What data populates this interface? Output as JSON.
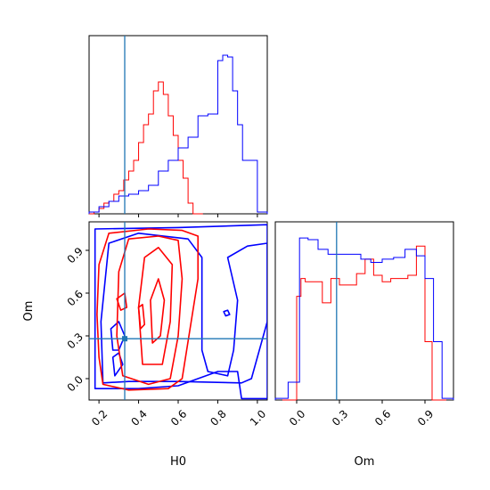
{
  "chart_data": {
    "type": "corner",
    "parameters": [
      "H0",
      "Om"
    ],
    "colors": {
      "run_a": "#ff0000",
      "run_b": "#0000ff",
      "truth": "#1f77b4"
    },
    "truth": {
      "H0": 0.33,
      "Om": 0.28
    },
    "panels": [
      {
        "id": "hist-H0",
        "type": "histogram",
        "xlim": [
          0.15,
          1.05
        ],
        "xticks": [
          0.2,
          0.4,
          0.6,
          0.8,
          1.0
        ],
        "run_a": {
          "bin_edges": [
            0.15,
            0.175,
            0.2,
            0.225,
            0.25,
            0.275,
            0.3,
            0.325,
            0.35,
            0.375,
            0.4,
            0.425,
            0.45,
            0.475,
            0.5,
            0.525,
            0.55,
            0.575,
            0.6,
            0.625,
            0.65,
            0.675,
            0.7,
            0.725
          ],
          "counts": [
            0,
            0.01,
            0.03,
            0.06,
            0.07,
            0.11,
            0.13,
            0.19,
            0.24,
            0.3,
            0.4,
            0.5,
            0.56,
            0.69,
            0.74,
            0.67,
            0.55,
            0.44,
            0.3,
            0.2,
            0.06,
            0,
            0
          ]
        },
        "run_b": {
          "bin_edges": [
            0.15,
            0.2,
            0.25,
            0.3,
            0.35,
            0.4,
            0.45,
            0.5,
            0.55,
            0.6,
            0.65,
            0.7,
            0.75,
            0.8,
            0.825,
            0.85,
            0.875,
            0.9,
            0.925,
            0.95,
            1.0,
            1.05
          ],
          "counts": [
            0.01,
            0.04,
            0.07,
            0.1,
            0.11,
            0.13,
            0.16,
            0.24,
            0.3,
            0.37,
            0.43,
            0.55,
            0.56,
            0.86,
            0.89,
            0.88,
            0.69,
            0.5,
            0.3,
            0.3,
            0.01
          ]
        },
        "ylim": [
          0,
          1
        ]
      },
      {
        "id": "contour-H0-Om",
        "type": "contour",
        "xlim": [
          0.15,
          1.05
        ],
        "ylim": [
          -0.15,
          1.1
        ],
        "xticks": [
          0.2,
          0.4,
          0.6,
          0.8,
          1.0
        ],
        "yticks": [
          0.0,
          0.3,
          0.6,
          0.9
        ],
        "xlabel": "H0",
        "ylabel": "Om",
        "run_a_contours": [
          [
            [
              0.22,
              -0.04
            ],
            [
              0.2,
              0.15
            ],
            [
              0.19,
              0.45
            ],
            [
              0.2,
              0.8
            ],
            [
              0.25,
              1.02
            ],
            [
              0.45,
              1.05
            ],
            [
              0.62,
              1.04
            ],
            [
              0.7,
              1.0
            ],
            [
              0.7,
              0.7
            ],
            [
              0.66,
              0.35
            ],
            [
              0.62,
              0.0
            ],
            [
              0.55,
              -0.07
            ],
            [
              0.35,
              -0.08
            ],
            [
              0.22,
              -0.04
            ]
          ],
          [
            [
              0.32,
              0.02
            ],
            [
              0.29,
              0.3
            ],
            [
              0.3,
              0.75
            ],
            [
              0.35,
              0.98
            ],
            [
              0.5,
              1.0
            ],
            [
              0.6,
              0.97
            ],
            [
              0.62,
              0.7
            ],
            [
              0.6,
              0.3
            ],
            [
              0.56,
              0.0
            ],
            [
              0.45,
              -0.04
            ],
            [
              0.32,
              0.02
            ]
          ],
          [
            [
              0.42,
              0.1
            ],
            [
              0.4,
              0.5
            ],
            [
              0.43,
              0.85
            ],
            [
              0.5,
              0.92
            ],
            [
              0.57,
              0.8
            ],
            [
              0.56,
              0.4
            ],
            [
              0.52,
              0.1
            ],
            [
              0.42,
              0.1
            ]
          ],
          [
            [
              0.47,
              0.25
            ],
            [
              0.46,
              0.55
            ],
            [
              0.5,
              0.7
            ],
            [
              0.53,
              0.55
            ],
            [
              0.51,
              0.3
            ],
            [
              0.47,
              0.25
            ]
          ],
          [
            [
              0.41,
              0.35
            ],
            [
              0.4,
              0.5
            ],
            [
              0.42,
              0.52
            ],
            [
              0.43,
              0.38
            ],
            [
              0.41,
              0.35
            ]
          ],
          [
            [
              0.31,
              0.48
            ],
            [
              0.29,
              0.56
            ],
            [
              0.33,
              0.6
            ],
            [
              0.34,
              0.5
            ],
            [
              0.31,
              0.48
            ]
          ]
        ],
        "run_b_contours": [
          [
            [
              0.18,
              -0.07
            ],
            [
              0.18,
              0.5
            ],
            [
              0.18,
              1.05
            ],
            [
              0.6,
              1.06
            ],
            [
              1.05,
              1.08
            ],
            [
              1.05,
              -0.14
            ],
            [
              0.92,
              -0.14
            ],
            [
              0.9,
              0.05
            ],
            [
              0.8,
              0.05
            ],
            [
              0.6,
              -0.05
            ],
            [
              0.4,
              -0.07
            ],
            [
              0.18,
              -0.07
            ]
          ],
          [
            [
              0.22,
              -0.03
            ],
            [
              0.21,
              0.4
            ],
            [
              0.25,
              0.95
            ],
            [
              0.4,
              1.02
            ],
            [
              0.65,
              0.98
            ],
            [
              0.72,
              0.85
            ],
            [
              0.72,
              0.55
            ],
            [
              0.72,
              0.2
            ],
            [
              0.75,
              0.05
            ],
            [
              0.85,
              0.02
            ],
            [
              0.88,
              0.2
            ],
            [
              0.9,
              0.55
            ],
            [
              0.85,
              0.85
            ],
            [
              0.95,
              0.93
            ],
            [
              1.05,
              0.95
            ],
            [
              1.05,
              0.4
            ],
            [
              0.97,
              0.0
            ],
            [
              0.92,
              -0.03
            ],
            [
              0.6,
              -0.02
            ],
            [
              0.35,
              -0.02
            ],
            [
              0.22,
              -0.03
            ]
          ],
          [
            [
              0.27,
              0.2
            ],
            [
              0.26,
              0.35
            ],
            [
              0.3,
              0.4
            ],
            [
              0.33,
              0.3
            ],
            [
              0.3,
              0.2
            ],
            [
              0.27,
              0.2
            ]
          ],
          [
            [
              0.84,
              0.44
            ],
            [
              0.83,
              0.47
            ],
            [
              0.85,
              0.48
            ],
            [
              0.86,
              0.45
            ],
            [
              0.84,
              0.44
            ]
          ],
          [
            [
              0.28,
              0.02
            ],
            [
              0.27,
              0.15
            ],
            [
              0.3,
              0.18
            ],
            [
              0.32,
              0.1
            ],
            [
              0.28,
              0.02
            ]
          ]
        ]
      },
      {
        "id": "hist-Om",
        "type": "histogram",
        "xlim": [
          -0.15,
          1.1
        ],
        "xticks": [
          0.0,
          0.3,
          0.6,
          0.9
        ],
        "xlabel": "Om",
        "run_a": {
          "bin_edges": [
            -0.1,
            0.0,
            0.03,
            0.06,
            0.12,
            0.18,
            0.24,
            0.3,
            0.36,
            0.42,
            0.48,
            0.54,
            0.6,
            0.66,
            0.72,
            0.78,
            0.84,
            0.9,
            0.95,
            1.0,
            1.05
          ],
          "counts": [
            0,
            0.64,
            0.75,
            0.73,
            0.73,
            0.6,
            0.75,
            0.71,
            0.71,
            0.78,
            0.87,
            0.77,
            0.73,
            0.75,
            0.75,
            0.77,
            0.95,
            0.36,
            0,
            0
          ]
        },
        "run_b": {
          "bin_edges": [
            -0.15,
            -0.06,
            0.02,
            0.08,
            0.15,
            0.22,
            0.3,
            0.38,
            0.45,
            0.52,
            0.6,
            0.68,
            0.76,
            0.84,
            0.9,
            0.96,
            1.02,
            1.1
          ],
          "counts": [
            0.01,
            0.11,
            1.0,
            0.99,
            0.93,
            0.9,
            0.9,
            0.9,
            0.87,
            0.85,
            0.87,
            0.88,
            0.93,
            0.89,
            0.75,
            0.36,
            0.01
          ]
        },
        "ylim": [
          0,
          1.1
        ]
      }
    ]
  }
}
